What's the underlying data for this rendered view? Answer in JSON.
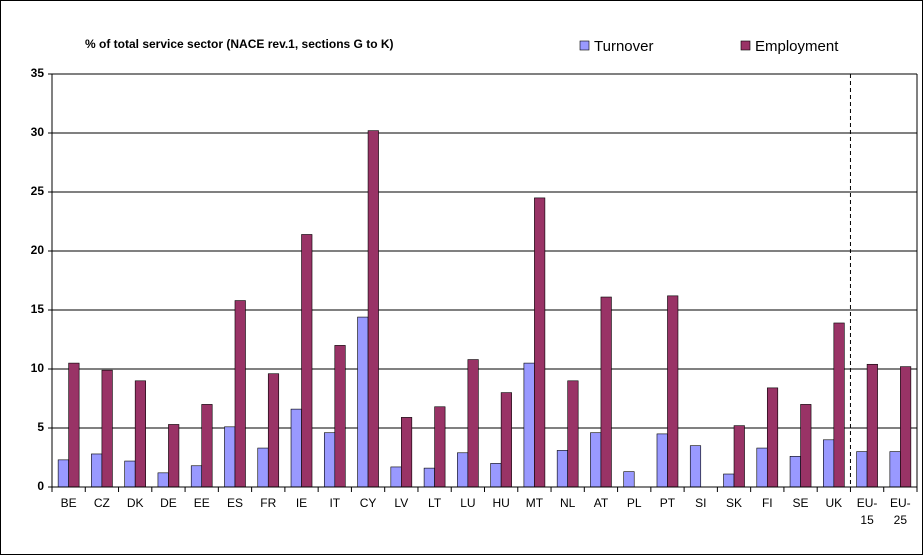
{
  "chart_data": {
    "type": "bar",
    "title": "% of total service sector (NACE rev.1, sections G to K)",
    "categories": [
      "BE",
      "CZ",
      "DK",
      "DE",
      "EE",
      "ES",
      "FR",
      "IE",
      "IT",
      "CY",
      "LV",
      "LT",
      "LU",
      "HU",
      "MT",
      "NL",
      "AT",
      "PL",
      "PT",
      "SI",
      "SK",
      "FI",
      "SE",
      "UK",
      "EU-15",
      "EU-25"
    ],
    "series": [
      {
        "name": "Turnover",
        "color": "#9999ff",
        "values": [
          2.3,
          2.8,
          2.2,
          1.2,
          1.8,
          5.1,
          3.3,
          6.6,
          4.6,
          14.4,
          1.7,
          1.6,
          2.9,
          2.0,
          10.5,
          3.1,
          4.6,
          1.3,
          4.5,
          3.5,
          1.1,
          3.3,
          2.6,
          4.0,
          3.0,
          3.0
        ]
      },
      {
        "name": "Employment",
        "color": "#993366",
        "values": [
          10.5,
          9.9,
          9.0,
          5.3,
          7.0,
          15.8,
          9.6,
          21.4,
          12.0,
          30.2,
          5.9,
          6.8,
          10.8,
          8.0,
          24.5,
          9.0,
          16.1,
          null,
          16.2,
          null,
          5.2,
          8.4,
          7.0,
          13.9,
          10.4,
          10.2
        ]
      }
    ],
    "ylim": [
      0,
      35
    ],
    "yticks": [
      0,
      5,
      10,
      15,
      20,
      25,
      30,
      35
    ],
    "grid": true,
    "legend": "top-right"
  }
}
